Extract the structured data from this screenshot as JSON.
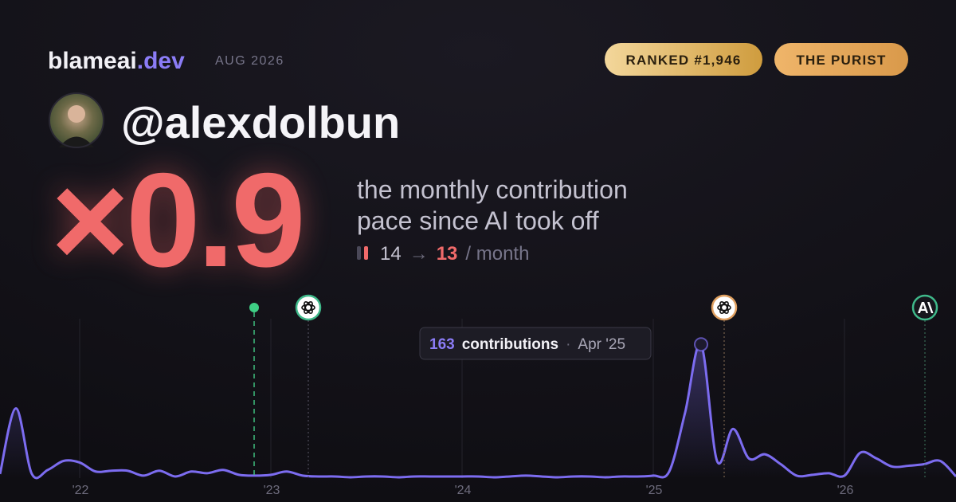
{
  "header": {
    "brand": "blameai",
    "brand_tld": ".dev",
    "date": "AUG 2026",
    "badges": [
      "RANKED #1,946",
      "THE PURIST"
    ]
  },
  "profile": {
    "handle": "@alexdolbun"
  },
  "stat": {
    "multiplier": "×0.9",
    "caption": [
      "the monthly contribution",
      "pace since AI took off"
    ],
    "before": 14,
    "arrow": "→",
    "after": 13,
    "unit": "/ month"
  },
  "chart_data": {
    "type": "line",
    "color": "#7c6cf0",
    "x": [
      "Aug '21",
      "Sep '21",
      "Oct '21",
      "Nov '21",
      "Dec '21",
      "Jan '22",
      "Feb '22",
      "Mar '22",
      "Apr '22",
      "May '22",
      "Jun '22",
      "Jul '22",
      "Aug '22",
      "Sep '22",
      "Oct '22",
      "Nov '22",
      "Dec '22",
      "Jan '23",
      "Feb '23",
      "Mar '23",
      "Apr '23",
      "May '23",
      "Jun '23",
      "Jul '23",
      "Aug '23",
      "Sep '23",
      "Oct '23",
      "Nov '23",
      "Dec '23",
      "Jan '24",
      "Feb '24",
      "Mar '24",
      "Apr '24",
      "May '24",
      "Jun '24",
      "Jul '24",
      "Aug '24",
      "Sep '24",
      "Oct '24",
      "Nov '24",
      "Dec '24",
      "Jan '25",
      "Feb '25",
      "Mar '25",
      "Apr '25",
      "May '25",
      "Jun '25",
      "Jul '25",
      "Aug '25",
      "Sep '25",
      "Oct '25",
      "Nov '25",
      "Dec '25",
      "Jan '26",
      "Feb '26",
      "Mar '26",
      "Apr '26",
      "May '26",
      "Jun '26",
      "Jul '26",
      "Aug '26"
    ],
    "values": [
      5,
      85,
      5,
      10,
      21,
      19,
      8,
      9,
      9,
      3,
      9,
      2,
      8,
      6,
      10,
      4,
      3,
      4,
      8,
      3,
      2,
      2,
      1,
      2,
      2,
      1,
      2,
      2,
      2,
      2,
      2,
      1,
      2,
      3,
      2,
      1,
      2,
      2,
      1,
      2,
      2,
      3,
      8,
      80,
      163,
      21,
      60,
      24,
      29,
      17,
      3,
      4,
      6,
      3,
      31,
      24,
      14,
      15,
      17,
      21,
      2
    ],
    "ylim": [
      0,
      170
    ],
    "xticks": [
      {
        "value": "Jan '22",
        "label": "'22"
      },
      {
        "value": "Jan '23",
        "label": "'23"
      },
      {
        "value": "Jan '24",
        "label": "'24"
      },
      {
        "value": "Jan '25",
        "label": "'25"
      },
      {
        "value": "Jan '26",
        "label": "'26"
      }
    ],
    "grid": true,
    "y_label": "contributions",
    "tooltip_separator": "·"
  }
}
